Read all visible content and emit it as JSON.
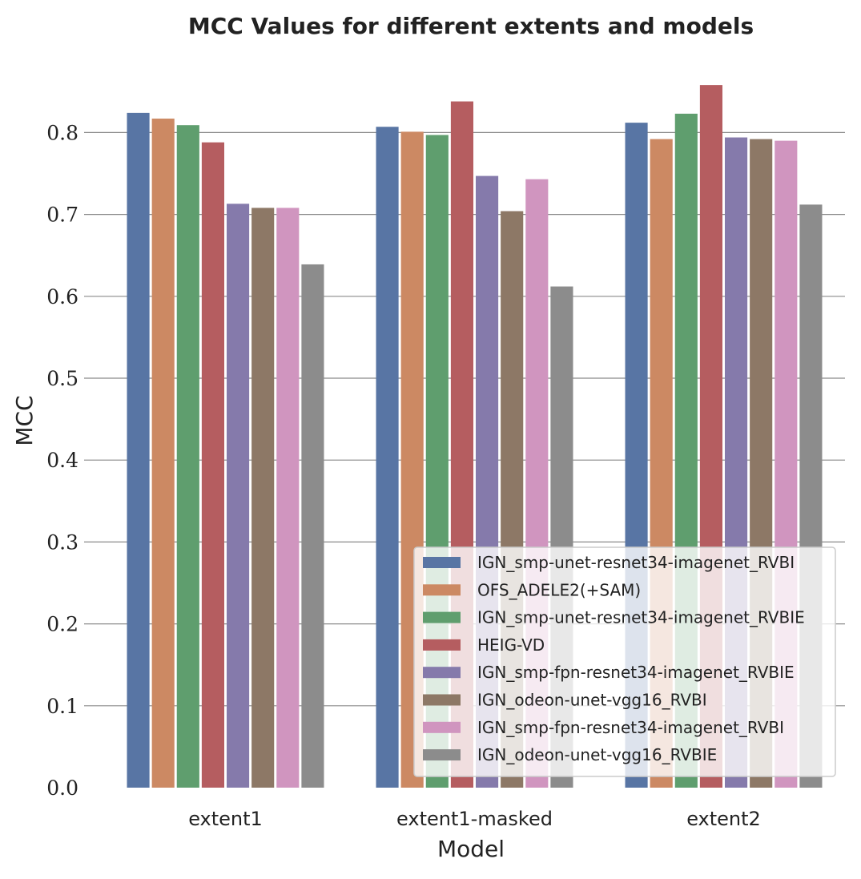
{
  "chart_data": {
    "type": "bar",
    "title": "MCC Values for different extents and models",
    "xlabel": "Model",
    "ylabel": "MCC",
    "categories": [
      "extent1",
      "extent1-masked",
      "extent2"
    ],
    "ylim": [
      0,
      0.86
    ],
    "yticks": [
      "0.0",
      "0.1",
      "0.2",
      "0.3",
      "0.4",
      "0.5",
      "0.6",
      "0.7",
      "0.8"
    ],
    "grid": "horizontal",
    "legend_position": "lower-right",
    "series": [
      {
        "name": "IGN_smp-unet-resnet34-imagenet_RVBI",
        "color": "#5875a4",
        "values": [
          0.824,
          0.807,
          0.812
        ]
      },
      {
        "name": "OFS_ADELE2(+SAM)",
        "color": "#cc8963",
        "values": [
          0.817,
          0.801,
          0.792
        ]
      },
      {
        "name": "IGN_smp-unet-resnet34-imagenet_RVBIE",
        "color": "#5f9e6e",
        "values": [
          0.809,
          0.797,
          0.823
        ]
      },
      {
        "name": "HEIG-VD",
        "color": "#b55d60",
        "values": [
          0.788,
          0.838,
          0.858
        ]
      },
      {
        "name": "IGN_smp-fpn-resnet34-imagenet_RVBIE",
        "color": "#857aab",
        "values": [
          0.713,
          0.747,
          0.794
        ]
      },
      {
        "name": "IGN_odeon-unet-vgg16_RVBI",
        "color": "#8d7866",
        "values": [
          0.708,
          0.704,
          0.792
        ]
      },
      {
        "name": "IGN_smp-fpn-resnet34-imagenet_RVBI",
        "color": "#d095bf",
        "values": [
          0.708,
          0.743,
          0.79
        ]
      },
      {
        "name": "IGN_odeon-unet-vgg16_RVBIE",
        "color": "#8c8c8c",
        "values": [
          0.639,
          0.612,
          0.712
        ]
      }
    ]
  }
}
